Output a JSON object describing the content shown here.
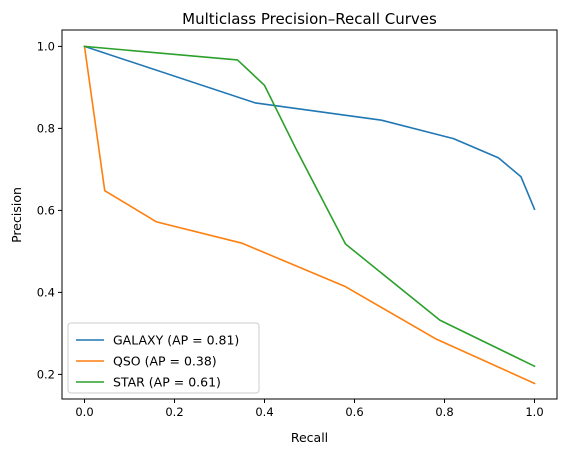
{
  "chart_data": {
    "type": "line",
    "title": "Multiclass Precision–Recall Curves",
    "xlabel": "Recall",
    "ylabel": "Precision",
    "xlim": [
      -0.05,
      1.05
    ],
    "ylim": [
      0.14,
      1.04
    ],
    "xticks": [
      "0.0",
      "0.2",
      "0.4",
      "0.6",
      "0.8",
      "1.0"
    ],
    "yticks": [
      "0.2",
      "0.4",
      "0.6",
      "0.8",
      "1.0"
    ],
    "grid": false,
    "legend_position": "lower-left",
    "series": [
      {
        "name": "GALAXY (AP = 0.81)",
        "color": "#1f77b4",
        "points": [
          [
            0.0,
            1.0
          ],
          [
            0.38,
            0.862
          ],
          [
            0.66,
            0.82
          ],
          [
            0.82,
            0.775
          ],
          [
            0.92,
            0.728
          ],
          [
            0.97,
            0.682
          ],
          [
            1.0,
            0.603
          ]
        ]
      },
      {
        "name": "QSO (AP = 0.38)",
        "color": "#ff7f0e",
        "points": [
          [
            0.0,
            1.0
          ],
          [
            0.045,
            0.648
          ],
          [
            0.16,
            0.572
          ],
          [
            0.35,
            0.52
          ],
          [
            0.58,
            0.414
          ],
          [
            0.78,
            0.287
          ],
          [
            1.0,
            0.178
          ]
        ]
      },
      {
        "name": "STAR (AP = 0.61)",
        "color": "#2ca02c",
        "points": [
          [
            0.0,
            1.0
          ],
          [
            0.34,
            0.967
          ],
          [
            0.4,
            0.905
          ],
          [
            0.47,
            0.75
          ],
          [
            0.58,
            0.518
          ],
          [
            0.79,
            0.332
          ],
          [
            1.0,
            0.22
          ]
        ]
      }
    ]
  }
}
